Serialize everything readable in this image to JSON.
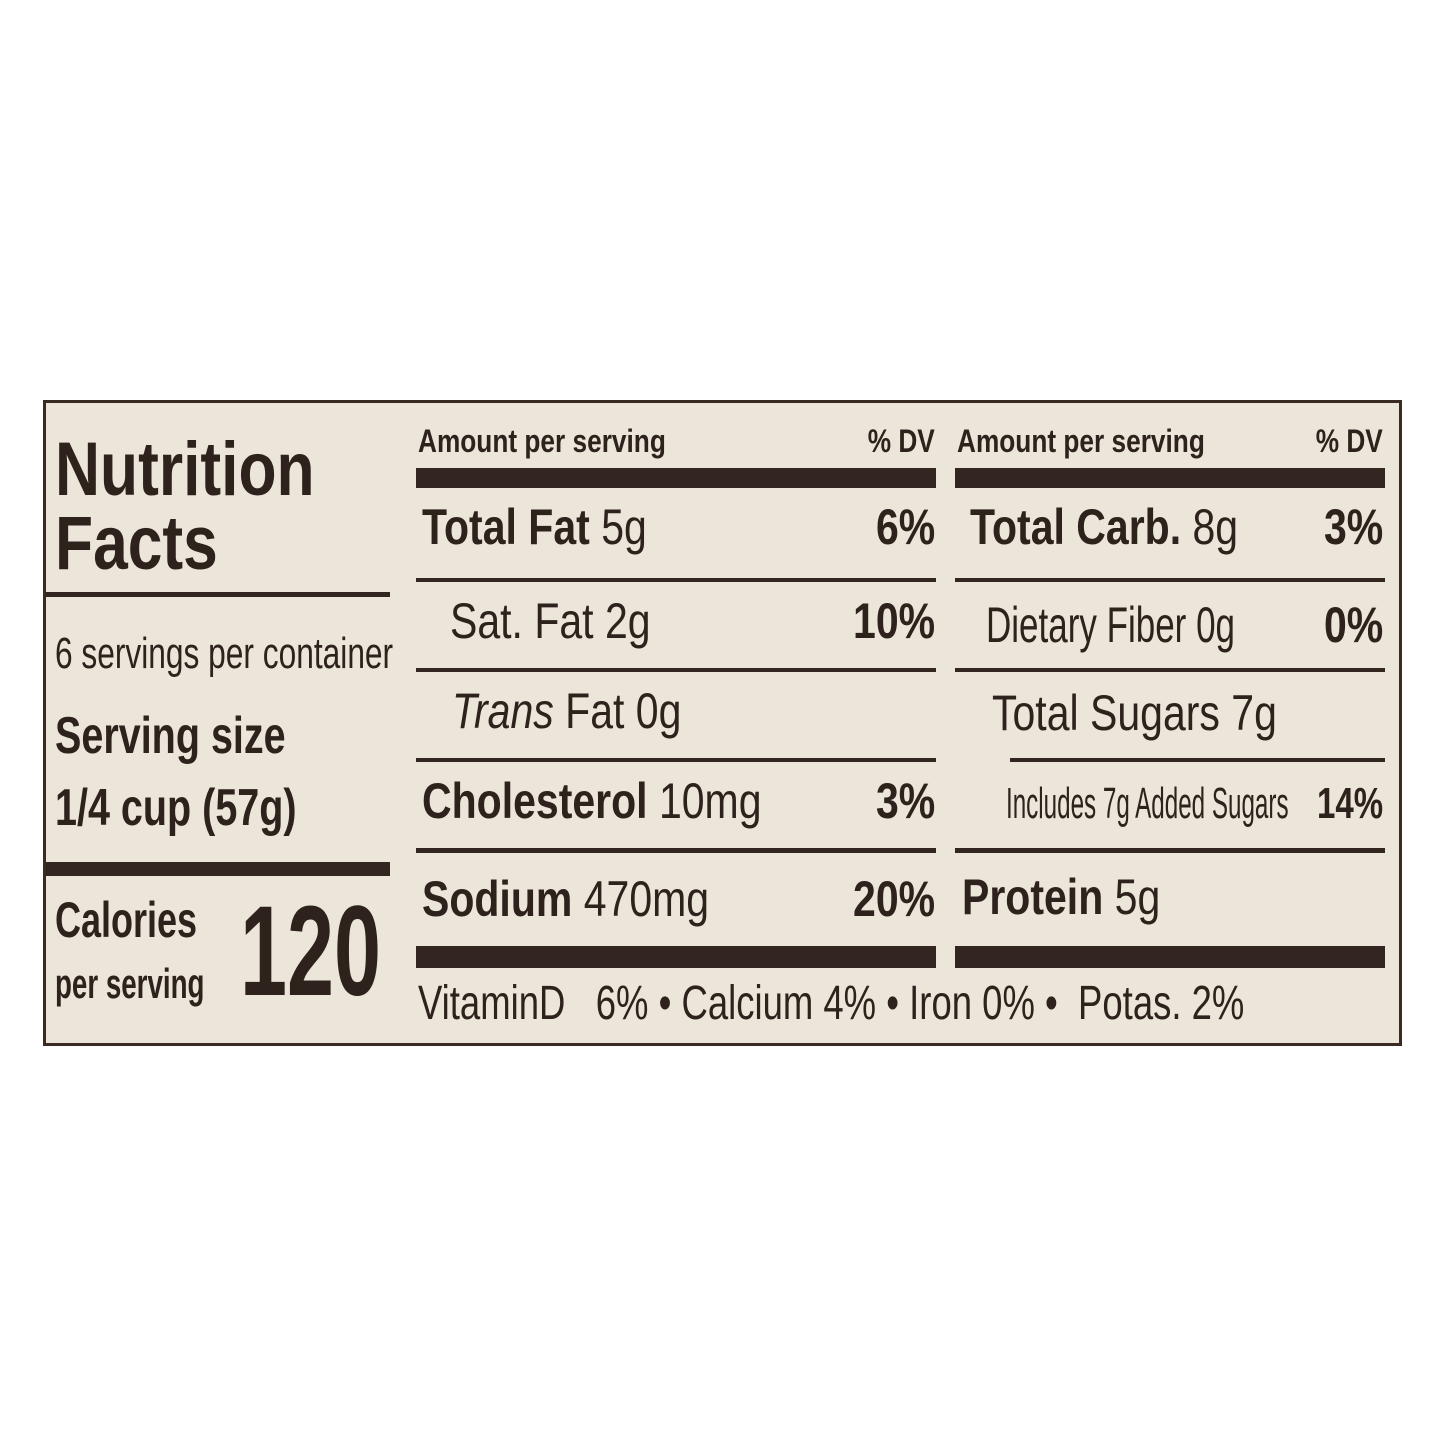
{
  "title_line1": "Nutrition",
  "title_line2": "Facts",
  "servings_per_container": "6 servings per container",
  "serving_size_label": "Serving size",
  "serving_size_value": "1/4 cup (57g)",
  "calories_label_line1": "Calories",
  "calories_label_line2": "per serving",
  "calories_value": "120",
  "left_table": {
    "header": "Amount per serving",
    "dv_header": "% DV",
    "rows": [
      {
        "name": "Total Fat",
        "amount": "5g",
        "dv": "6%"
      },
      {
        "name": "Sat. Fat",
        "amount": "2g",
        "dv": "10%"
      },
      {
        "name": "Trans",
        "amount": "Fat 0g",
        "dv": ""
      },
      {
        "name": "Cholesterol",
        "amount": "10mg",
        "dv": "3%"
      },
      {
        "name": "Sodium",
        "amount": "470mg",
        "dv": "20%"
      }
    ]
  },
  "right_table": {
    "header": "Amount per serving",
    "dv_header": "% DV",
    "rows": [
      {
        "name": "Total Carb.",
        "amount": "8g",
        "dv": "3%"
      },
      {
        "name": "Dietary Fiber",
        "amount": "0g",
        "dv": "0%"
      },
      {
        "name": "Total Sugars",
        "amount": "7g",
        "dv": ""
      },
      {
        "name": "Includes 7g Added Sugars",
        "amount": "",
        "dv": "14%"
      },
      {
        "name": "Protein",
        "amount": "5g",
        "dv": ""
      }
    ]
  },
  "micronutrients": "VitaminD   6% • Calcium 4% • Iron 0% •  Potas. 2%",
  "colors": {
    "ink": "#33251f",
    "label_bg": "#ebe5da",
    "border": "#3a2a24"
  }
}
